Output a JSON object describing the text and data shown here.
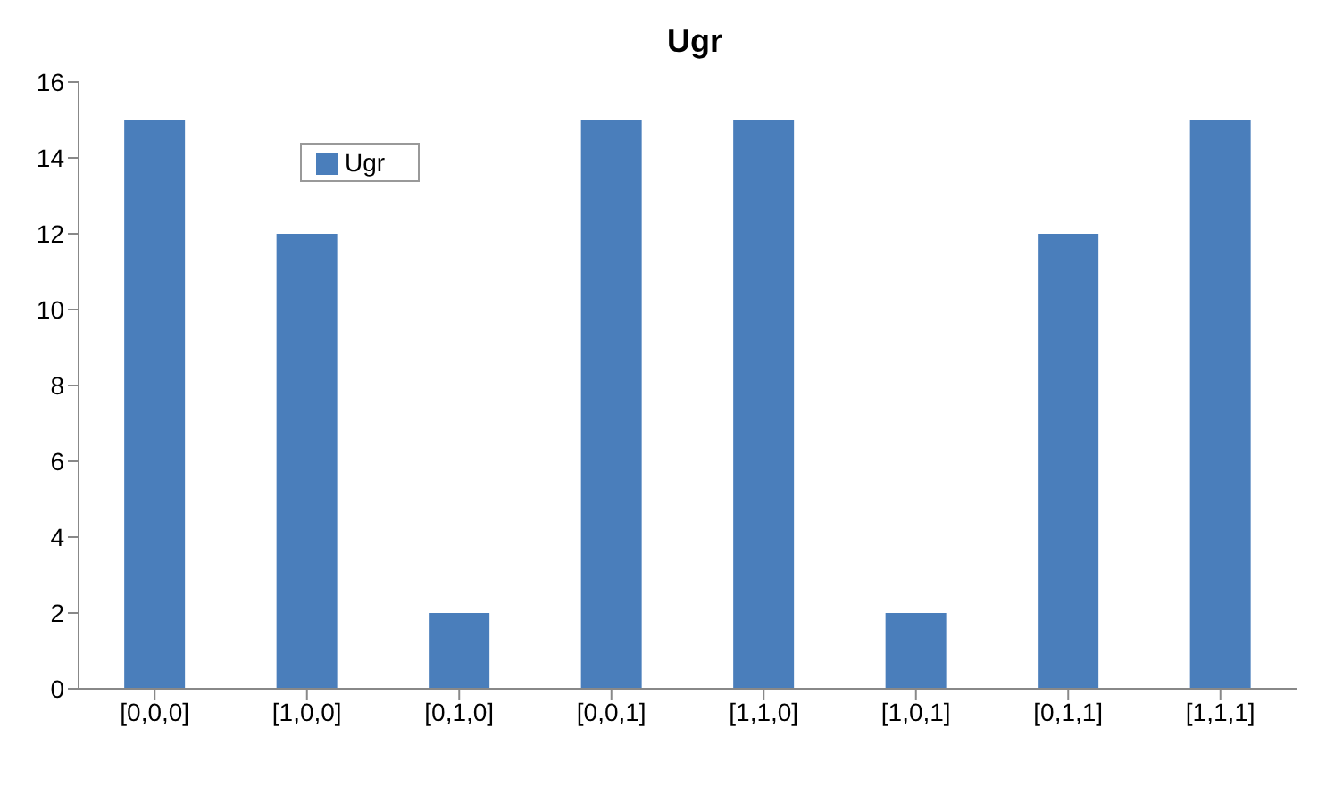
{
  "chart_data": {
    "type": "bar",
    "title": "Ugr",
    "categories": [
      "[0,0,0]",
      "[1,0,0]",
      "[0,1,0]",
      "[0,0,1]",
      "[1,1,0]",
      "[1,0,1]",
      "[0,1,1]",
      "[1,1,1]"
    ],
    "series": [
      {
        "name": "Ugr",
        "color": "#4a7ebb",
        "values": [
          15,
          12,
          2,
          15,
          15,
          2,
          12,
          15
        ]
      }
    ],
    "ylim": [
      0,
      16
    ],
    "yticks": [
      0,
      2,
      4,
      6,
      8,
      10,
      12,
      14,
      16
    ],
    "grid": false,
    "legend": "top left"
  }
}
